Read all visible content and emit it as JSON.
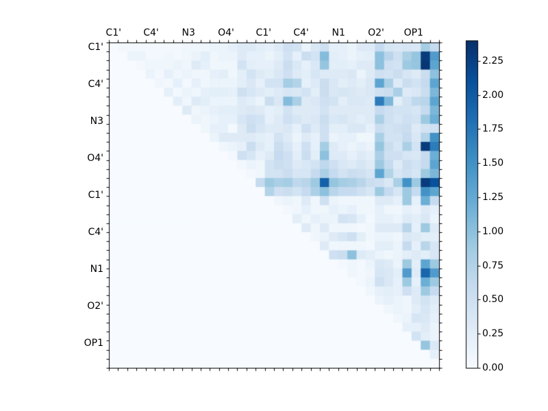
{
  "figure": {
    "background": "#ffffff",
    "border_color": "#000000"
  },
  "chart_data": {
    "type": "heatmap",
    "title": "",
    "xlabel": "",
    "ylabel": "",
    "triangle": "upper",
    "grid": false,
    "matrix_size": 36,
    "x_group_labels": [
      "C1'",
      "C4'",
      "N3",
      "O4'",
      "C1'",
      "C4'",
      "N1",
      "O2'",
      "OP1"
    ],
    "y_group_labels": [
      "C1'",
      "C4'",
      "N3",
      "O4'",
      "C1'",
      "C4'",
      "N1",
      "O2'",
      "OP1"
    ],
    "label_every_n_cells": 4,
    "first_label_center_cell": 0.5,
    "colormap": "Blues",
    "colormap_stops": [
      "#f7fbff",
      "#deebf7",
      "#c6dbef",
      "#9ecae1",
      "#6baed6",
      "#4292c6",
      "#2171b5",
      "#08519c",
      "#08306b"
    ],
    "vmin": 0.0,
    "vmax": 2.4,
    "colorbar": {
      "position": "right",
      "tick_labels": [
        "0.00",
        "0.25",
        "0.50",
        "0.75",
        "1.00",
        "1.25",
        "1.50",
        "1.75",
        "2.00",
        "2.25"
      ],
      "tick_values": [
        0.0,
        0.25,
        0.5,
        0.75,
        1.0,
        1.25,
        1.5,
        1.75,
        2.0,
        2.25
      ]
    },
    "matrix": [
      [
        0,
        0.05,
        0.05,
        0.05,
        0.05,
        0.05,
        0.05,
        0.05,
        0.1,
        0.1,
        0.1,
        0.15,
        0.15,
        0.2,
        0.3,
        0.3,
        0.25,
        0.2,
        0.3,
        0.5,
        0.45,
        0.15,
        0.35,
        0.5,
        0.2,
        0.2,
        0.15,
        0.3,
        0.3,
        0.6,
        0.4,
        0.35,
        0.4,
        0.35,
        0.85,
        0.6
      ],
      [
        0,
        0,
        0.15,
        0.15,
        0.05,
        0.05,
        0.1,
        0.05,
        0.1,
        0.15,
        0.25,
        0.1,
        0.15,
        0.15,
        0.3,
        0.2,
        0.2,
        0.15,
        0.25,
        0.45,
        0.2,
        0.55,
        0.45,
        1.05,
        0.25,
        0.2,
        0.15,
        0.2,
        0.25,
        1.0,
        0.7,
        0.5,
        0.8,
        0.95,
        2.3,
        1.4
      ],
      [
        0,
        0,
        0,
        0.05,
        0.1,
        0.1,
        0.1,
        0.15,
        0.1,
        0.3,
        0.2,
        0.1,
        0.1,
        0.1,
        0.45,
        0.25,
        0.2,
        0.2,
        0.3,
        0.55,
        0.35,
        0.2,
        0.35,
        0.95,
        0.25,
        0.25,
        0.2,
        0.3,
        0.3,
        1.0,
        0.5,
        0.45,
        0.9,
        0.95,
        2.35,
        1.3
      ],
      [
        0,
        0,
        0,
        0,
        0.15,
        0.05,
        0.2,
        0.1,
        0.15,
        0.1,
        0.1,
        0.2,
        0.25,
        0.1,
        0.25,
        0.45,
        0.3,
        0.25,
        0.35,
        0.5,
        0.3,
        0.25,
        0.4,
        0.3,
        0.3,
        0.3,
        0.35,
        0.15,
        0.3,
        0.5,
        0.45,
        0.55,
        0.4,
        0.3,
        0.55,
        1.0
      ],
      [
        0,
        0,
        0,
        0,
        0,
        0.1,
        0.05,
        0.2,
        0.05,
        0.2,
        0.1,
        0.15,
        0.15,
        0.15,
        0.25,
        0.35,
        0.2,
        0.45,
        0.45,
        0.85,
        0.75,
        0.2,
        0.3,
        0.55,
        0.35,
        0.25,
        0.3,
        0.25,
        0.35,
        1.3,
        0.8,
        0.3,
        0.55,
        0.45,
        0.6,
        1.3
      ],
      [
        0,
        0,
        0,
        0,
        0,
        0,
        0.2,
        0.05,
        0.15,
        0.1,
        0.2,
        0.25,
        0.25,
        0.2,
        0.5,
        0.4,
        0.3,
        0.25,
        0.3,
        0.4,
        0.35,
        0.45,
        0.25,
        0.55,
        0.35,
        0.4,
        0.35,
        0.3,
        0.35,
        0.5,
        0.55,
        0.8,
        0.3,
        0.35,
        0.55,
        1.1
      ],
      [
        0,
        0,
        0,
        0,
        0,
        0,
        0,
        0.25,
        0.1,
        0.3,
        0.25,
        0.15,
        0.15,
        0.15,
        0.3,
        0.25,
        0.15,
        0.55,
        0.35,
        1.05,
        0.8,
        0.3,
        0.35,
        0.5,
        0.45,
        0.25,
        0.35,
        0.35,
        0.3,
        1.7,
        1.1,
        0.25,
        0.45,
        0.65,
        0.7,
        1.3
      ],
      [
        0,
        0,
        0,
        0,
        0,
        0,
        0,
        0,
        0.3,
        0.1,
        0.15,
        0.2,
        0.25,
        0.25,
        0.3,
        0.35,
        0.3,
        0.2,
        0.25,
        0.45,
        0.3,
        0.3,
        0.3,
        0.45,
        0.3,
        0.3,
        0.3,
        0.3,
        0.3,
        0.6,
        0.5,
        0.45,
        0.45,
        0.4,
        0.6,
        1.1
      ],
      [
        0,
        0,
        0,
        0,
        0,
        0,
        0,
        0,
        0,
        0.15,
        0.1,
        0.15,
        0.2,
        0.2,
        0.4,
        0.5,
        0.45,
        0.2,
        0.3,
        0.5,
        0.4,
        0.3,
        0.35,
        0.55,
        0.35,
        0.4,
        0.3,
        0.25,
        0.3,
        0.8,
        0.5,
        0.4,
        0.5,
        0.45,
        0.9,
        1.2
      ],
      [
        0,
        0,
        0,
        0,
        0,
        0,
        0,
        0,
        0,
        0,
        0.1,
        0.2,
        0.2,
        0.05,
        0.3,
        0.55,
        0.4,
        0.3,
        0.3,
        0.35,
        0.2,
        0.5,
        0.3,
        0.5,
        0.25,
        0.25,
        0.35,
        0.35,
        0.2,
        0.55,
        0.45,
        0.5,
        0.55,
        0.3,
        0.45,
        0.5
      ],
      [
        0,
        0,
        0,
        0,
        0,
        0,
        0,
        0,
        0,
        0,
        0,
        0.15,
        0.3,
        0.3,
        0.3,
        0.3,
        0.25,
        0.2,
        0.45,
        0.3,
        0.15,
        0.3,
        0.2,
        0.5,
        0.15,
        0.2,
        0.2,
        0.1,
        0.1,
        0.8,
        0.45,
        0.45,
        0.6,
        0.35,
        0.75,
        1.5
      ],
      [
        0,
        0,
        0,
        0,
        0,
        0,
        0,
        0,
        0,
        0,
        0,
        0,
        0.1,
        0.15,
        0.2,
        0.55,
        0.3,
        0.2,
        0.55,
        0.4,
        0.2,
        0.5,
        0.2,
        0.85,
        0.3,
        0.2,
        0.15,
        0.2,
        0.15,
        0.95,
        0.55,
        0.4,
        0.8,
        0.45,
        2.3,
        1.7
      ],
      [
        0,
        0,
        0,
        0,
        0,
        0,
        0,
        0,
        0,
        0,
        0,
        0,
        0,
        0.05,
        0.5,
        0.4,
        0.2,
        0.3,
        0.6,
        0.5,
        0.25,
        0.55,
        0.25,
        1.0,
        0.3,
        0.3,
        0.2,
        0.3,
        0.25,
        0.8,
        0.5,
        0.5,
        0.4,
        0.35,
        0.6,
        1.2
      ],
      [
        0,
        0,
        0,
        0,
        0,
        0,
        0,
        0,
        0,
        0,
        0,
        0,
        0,
        0,
        0.05,
        0.15,
        0.1,
        0.45,
        0.55,
        0.5,
        0.3,
        0.35,
        0.45,
        0.65,
        0.5,
        0.35,
        0.3,
        0.4,
        0.3,
        0.9,
        0.6,
        0.3,
        0.55,
        0.45,
        0.6,
        1.3
      ],
      [
        0,
        0,
        0,
        0,
        0,
        0,
        0,
        0,
        0,
        0,
        0,
        0,
        0,
        0,
        0,
        0.05,
        0.1,
        0.45,
        0.45,
        0.55,
        0.4,
        0.4,
        0.6,
        0.8,
        0.6,
        0.45,
        0.55,
        0.5,
        0.4,
        1.3,
        0.75,
        0.4,
        0.5,
        0.4,
        0.9,
        1.1
      ],
      [
        0,
        0,
        0,
        0,
        0,
        0,
        0,
        0,
        0,
        0,
        0,
        0,
        0,
        0,
        0,
        0,
        0.6,
        0.9,
        0.8,
        0.85,
        0.65,
        0.7,
        0.9,
        1.95,
        0.95,
        0.85,
        0.8,
        0.7,
        0.55,
        0.5,
        0.35,
        0.8,
        1.5,
        0.9,
        2.3,
        2.1
      ],
      [
        0,
        0,
        0,
        0,
        0,
        0,
        0,
        0,
        0,
        0,
        0,
        0,
        0,
        0,
        0,
        0,
        0,
        0.75,
        0.5,
        0.55,
        0.45,
        0.6,
        0.8,
        1.0,
        0.7,
        0.6,
        0.6,
        0.5,
        0.4,
        0.9,
        0.6,
        0.4,
        0.9,
        0.6,
        1.5,
        1.3
      ],
      [
        0,
        0,
        0,
        0,
        0,
        0,
        0,
        0,
        0,
        0,
        0,
        0,
        0,
        0,
        0,
        0,
        0,
        0,
        0.1,
        0.15,
        0.1,
        0.3,
        0.1,
        0.5,
        0.15,
        0.1,
        0.1,
        0.1,
        0.1,
        0.3,
        0.3,
        0.2,
        0.9,
        0.2,
        1.2,
        0.6
      ],
      [
        0,
        0,
        0,
        0,
        0,
        0,
        0,
        0,
        0,
        0,
        0,
        0,
        0,
        0,
        0,
        0,
        0,
        0,
        0,
        0.05,
        0.1,
        0.2,
        0.1,
        0.1,
        0.2,
        0.15,
        0.2,
        0.1,
        0.1,
        0.2,
        0.1,
        0.1,
        0.2,
        0.15,
        0.3,
        0.2
      ],
      [
        0,
        0,
        0,
        0,
        0,
        0,
        0,
        0,
        0,
        0,
        0,
        0,
        0,
        0,
        0,
        0,
        0,
        0,
        0,
        0,
        0.25,
        0.1,
        0.2,
        0.15,
        0.15,
        0.45,
        0.4,
        0.2,
        0.05,
        0.2,
        0.2,
        0.15,
        0.3,
        0.25,
        0.35,
        0.15
      ],
      [
        0,
        0,
        0,
        0,
        0,
        0,
        0,
        0,
        0,
        0,
        0,
        0,
        0,
        0,
        0,
        0,
        0,
        0,
        0,
        0,
        0,
        0.3,
        0.1,
        0.3,
        0.1,
        0.1,
        0.1,
        0.05,
        0.1,
        0.3,
        0.3,
        0.3,
        0.7,
        0.2,
        0.9,
        0.3
      ],
      [
        0,
        0,
        0,
        0,
        0,
        0,
        0,
        0,
        0,
        0,
        0,
        0,
        0,
        0,
        0,
        0,
        0,
        0,
        0,
        0,
        0,
        0,
        0.1,
        0.15,
        0.3,
        0.4,
        0.5,
        0.25,
        0.1,
        0.15,
        0.15,
        0.1,
        0.35,
        0.3,
        0.25,
        0.25
      ],
      [
        0,
        0,
        0,
        0,
        0,
        0,
        0,
        0,
        0,
        0,
        0,
        0,
        0,
        0,
        0,
        0,
        0,
        0,
        0,
        0,
        0,
        0,
        0,
        0.3,
        0.1,
        0.1,
        0.1,
        0.1,
        0.05,
        0.25,
        0.25,
        0.15,
        0.6,
        0.2,
        0.7,
        0.4
      ],
      [
        0,
        0,
        0,
        0,
        0,
        0,
        0,
        0,
        0,
        0,
        0,
        0,
        0,
        0,
        0,
        0,
        0,
        0,
        0,
        0,
        0,
        0,
        0,
        0,
        0.5,
        0.55,
        1.0,
        0.3,
        0.25,
        0.15,
        0.1,
        0.15,
        0.25,
        0.3,
        0.25,
        0.4
      ],
      [
        0,
        0,
        0,
        0,
        0,
        0,
        0,
        0,
        0,
        0,
        0,
        0,
        0,
        0,
        0,
        0,
        0,
        0,
        0,
        0,
        0,
        0,
        0,
        0,
        0,
        0.05,
        0.1,
        0.05,
        0.15,
        0.35,
        0.3,
        0.15,
        0.9,
        0.25,
        1.3,
        0.9
      ],
      [
        0,
        0,
        0,
        0,
        0,
        0,
        0,
        0,
        0,
        0,
        0,
        0,
        0,
        0,
        0,
        0,
        0,
        0,
        0,
        0,
        0,
        0,
        0,
        0,
        0,
        0,
        0.1,
        0.05,
        0.1,
        0.4,
        0.35,
        0.25,
        1.4,
        0.3,
        1.9,
        1.4
      ],
      [
        0,
        0,
        0,
        0,
        0,
        0,
        0,
        0,
        0,
        0,
        0,
        0,
        0,
        0,
        0,
        0,
        0,
        0,
        0,
        0,
        0,
        0,
        0,
        0,
        0,
        0,
        0,
        0.05,
        0.15,
        0.5,
        0.35,
        0.2,
        0.9,
        0.2,
        1.2,
        0.9
      ],
      [
        0,
        0,
        0,
        0,
        0,
        0,
        0,
        0,
        0,
        0,
        0,
        0,
        0,
        0,
        0,
        0,
        0,
        0,
        0,
        0,
        0,
        0,
        0,
        0,
        0,
        0,
        0,
        0,
        0.1,
        0.2,
        0.25,
        0.2,
        0.5,
        0.3,
        0.9,
        0.6
      ],
      [
        0,
        0,
        0,
        0,
        0,
        0,
        0,
        0,
        0,
        0,
        0,
        0,
        0,
        0,
        0,
        0,
        0,
        0,
        0,
        0,
        0,
        0,
        0,
        0,
        0,
        0,
        0,
        0,
        0,
        0.15,
        0.2,
        0.15,
        0.1,
        0.3,
        0.45,
        0.3
      ],
      [
        0,
        0,
        0,
        0,
        0,
        0,
        0,
        0,
        0,
        0,
        0,
        0,
        0,
        0,
        0,
        0,
        0,
        0,
        0,
        0,
        0,
        0,
        0,
        0,
        0,
        0,
        0,
        0,
        0,
        0,
        0.1,
        0.15,
        0.1,
        0.25,
        0.4,
        0.25
      ],
      [
        0,
        0,
        0,
        0,
        0,
        0,
        0,
        0,
        0,
        0,
        0,
        0,
        0,
        0,
        0,
        0,
        0,
        0,
        0,
        0,
        0,
        0,
        0,
        0,
        0,
        0,
        0,
        0,
        0,
        0,
        0,
        0.1,
        0.15,
        0.4,
        0.35,
        0.2
      ],
      [
        0,
        0,
        0,
        0,
        0,
        0,
        0,
        0,
        0,
        0,
        0,
        0,
        0,
        0,
        0,
        0,
        0,
        0,
        0,
        0,
        0,
        0,
        0,
        0,
        0,
        0,
        0,
        0,
        0,
        0,
        0,
        0,
        0.2,
        0.2,
        0.3,
        0.15
      ],
      [
        0,
        0,
        0,
        0,
        0,
        0,
        0,
        0,
        0,
        0,
        0,
        0,
        0,
        0,
        0,
        0,
        0,
        0,
        0,
        0,
        0,
        0,
        0,
        0,
        0,
        0,
        0,
        0,
        0,
        0,
        0,
        0,
        0,
        0.45,
        0.25,
        0.15
      ],
      [
        0,
        0,
        0,
        0,
        0,
        0,
        0,
        0,
        0,
        0,
        0,
        0,
        0,
        0,
        0,
        0,
        0,
        0,
        0,
        0,
        0,
        0,
        0,
        0,
        0,
        0,
        0,
        0,
        0,
        0,
        0,
        0,
        0,
        0,
        0.95,
        0.35
      ],
      [
        0,
        0,
        0,
        0,
        0,
        0,
        0,
        0,
        0,
        0,
        0,
        0,
        0,
        0,
        0,
        0,
        0,
        0,
        0,
        0,
        0,
        0,
        0,
        0,
        0,
        0,
        0,
        0,
        0,
        0,
        0,
        0,
        0,
        0,
        0,
        0.2
      ],
      [
        0,
        0,
        0,
        0,
        0,
        0,
        0,
        0,
        0,
        0,
        0,
        0,
        0,
        0,
        0,
        0,
        0,
        0,
        0,
        0,
        0,
        0,
        0,
        0,
        0,
        0,
        0,
        0,
        0,
        0,
        0,
        0,
        0,
        0,
        0,
        0
      ]
    ]
  }
}
